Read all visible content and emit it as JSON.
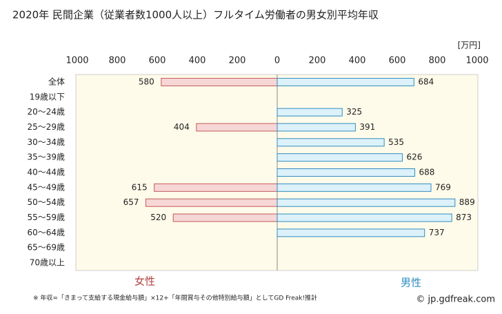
{
  "chart_data": {
    "type": "bar",
    "title": "2020年 民間企業（従業者数1000人以上）フルタイム労働者の男女別平均年収",
    "unit": "[万円]",
    "categories": [
      "全体",
      "19歳以下",
      "20～24歳",
      "25～29歳",
      "30～34歳",
      "35～39歳",
      "40～44歳",
      "45～49歳",
      "50～54歳",
      "55～59歳",
      "60～64歳",
      "65～69歳",
      "70歳以上"
    ],
    "series": [
      {
        "name": "女性",
        "side": "left",
        "color": "#f7d6d6",
        "stroke": "#c05a5a",
        "label_color": "#b04040",
        "values": [
          580,
          null,
          null,
          404,
          null,
          null,
          null,
          615,
          657,
          520,
          null,
          null,
          null
        ]
      },
      {
        "name": "男性",
        "side": "right",
        "color": "#dcf1fa",
        "stroke": "#2f8cc0",
        "label_color": "#2f8cc0",
        "values": [
          684,
          null,
          325,
          391,
          535,
          626,
          688,
          769,
          889,
          873,
          737,
          null,
          null
        ]
      }
    ],
    "xlim": [
      0,
      1000
    ],
    "xticks": [
      0,
      200,
      400,
      600,
      800,
      1000
    ],
    "grid": false,
    "footnote": "※ 年収=「きまって支給する現金給与額」×12+「年間賞与その他特別給与額」としてGD Freak!推計",
    "credit": "© jp.gdfreak.com"
  }
}
